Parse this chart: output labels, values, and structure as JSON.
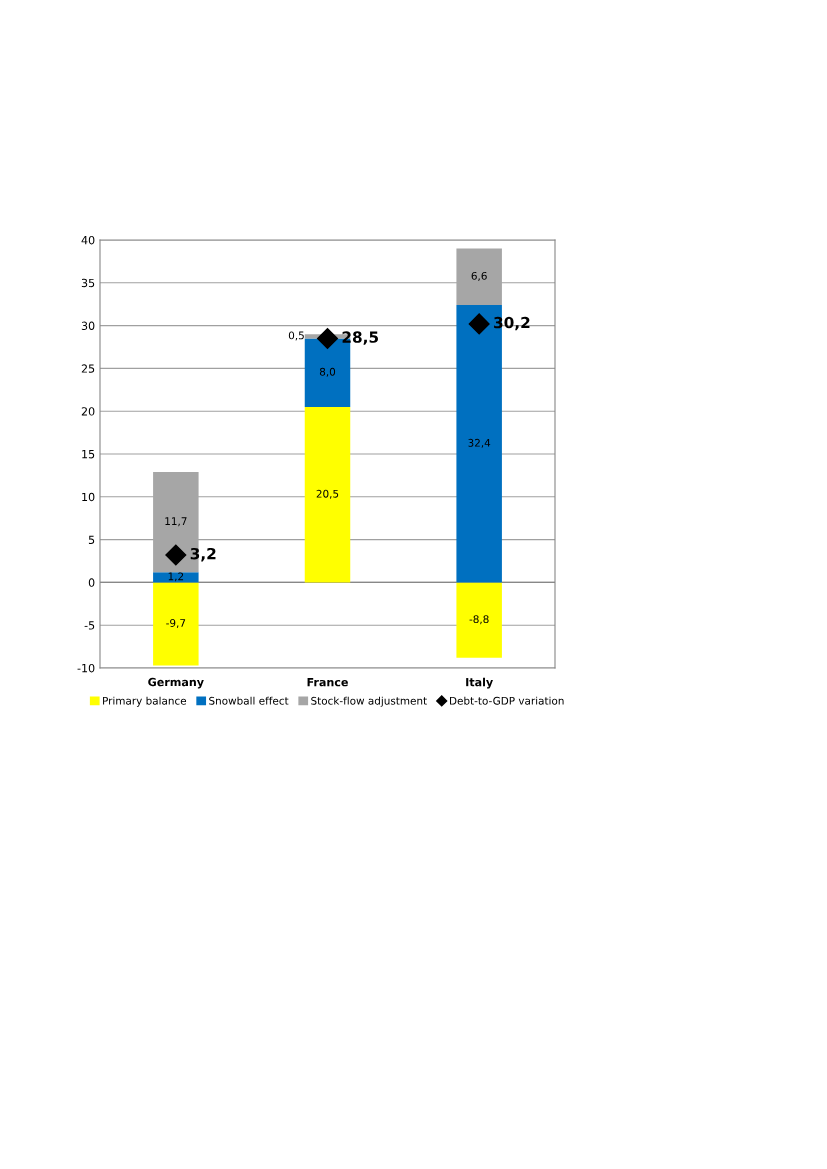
{
  "chart_data": {
    "type": "bar",
    "stacked": true,
    "categories": [
      "Germany",
      "France",
      "Italy"
    ],
    "series": [
      {
        "name": "Primary balance",
        "color": "#ffff00",
        "values": [
          -9.7,
          20.5,
          -8.8
        ],
        "value_labels": [
          "-9,7",
          "20,5",
          "-8,8"
        ]
      },
      {
        "name": "Snowball effect",
        "color": "#0070c0",
        "values": [
          1.2,
          8.0,
          32.4
        ],
        "value_labels": [
          "1,2",
          "8,0",
          "32,4"
        ]
      },
      {
        "name": "Stock-flow adjustment",
        "color": "#a6a6a6",
        "values": [
          11.7,
          0.5,
          6.6
        ],
        "value_labels": [
          "11,7",
          "0,5",
          "6,6"
        ]
      },
      {
        "name": "Debt-to-GDP variation",
        "type": "scatter",
        "color": "#000000",
        "marker": "diamond",
        "x": [
          "Germany",
          "France",
          "Italy"
        ],
        "values": [
          3.2,
          28.5,
          30.2
        ],
        "value_labels": [
          "3,2",
          "28,5",
          "30,2"
        ]
      }
    ],
    "ylim": [
      -10,
      40
    ],
    "yticks": [
      -10,
      -5,
      0,
      5,
      10,
      15,
      20,
      25,
      30,
      35,
      40
    ],
    "grid": "y",
    "legend": "bottom"
  }
}
